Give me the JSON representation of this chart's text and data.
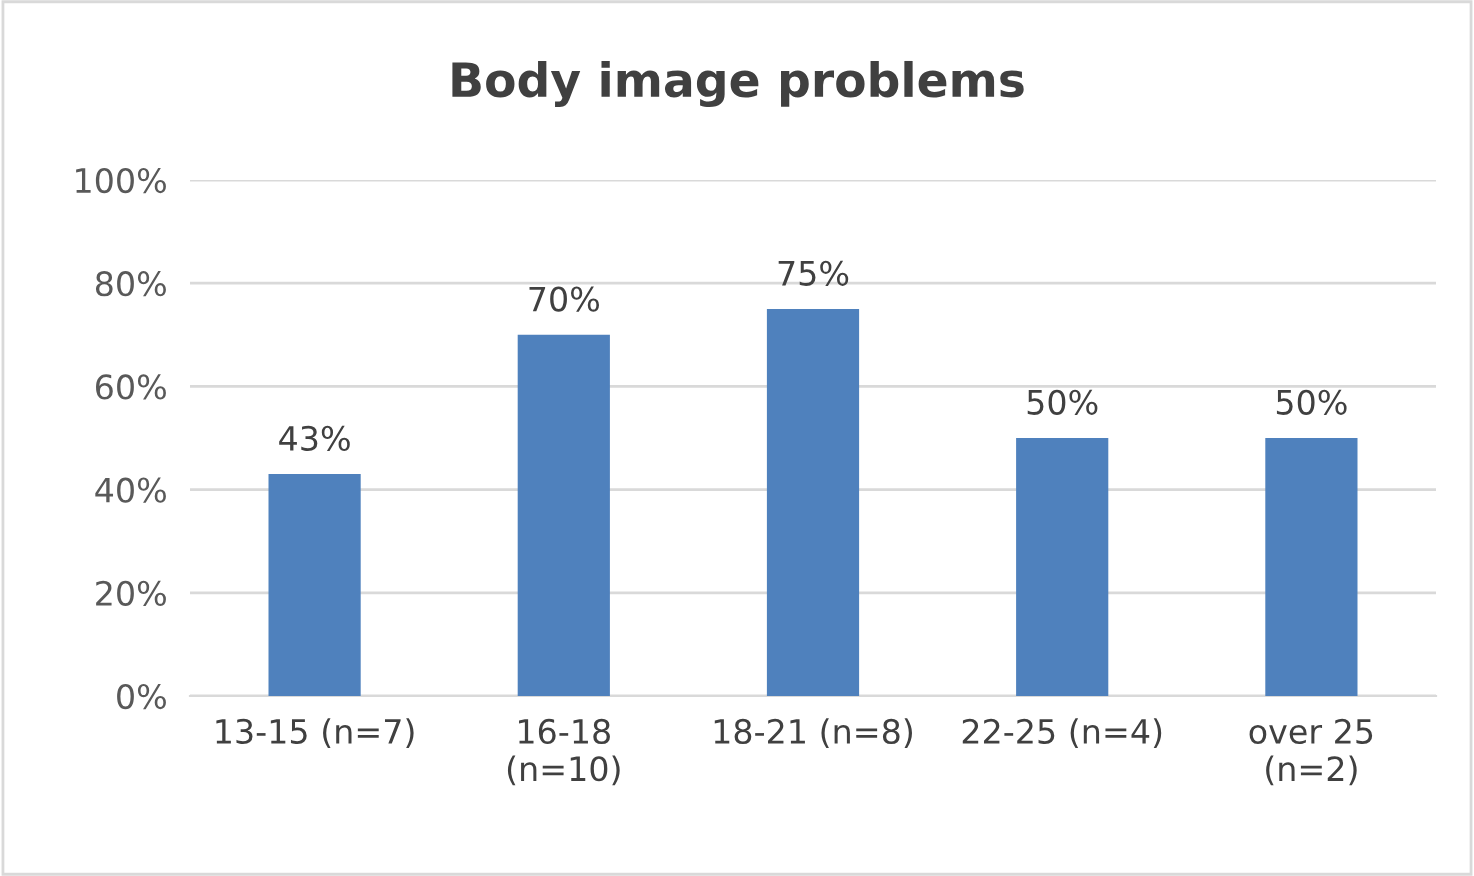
{
  "chart_data": {
    "type": "bar",
    "title": "Body image problems",
    "categories": [
      "13-15 (n=7)",
      "16-18 (n=10)",
      "18-21 (n=8)",
      "22-25 (n=4)",
      "over 25 (n=2)"
    ],
    "values": [
      43,
      70,
      75,
      50,
      50
    ],
    "value_labels": [
      "43%",
      "70%",
      "75%",
      "50%",
      "50%"
    ],
    "color": "#4f81bd",
    "ylim": [
      0,
      100
    ],
    "yticks": [
      {
        "value": 0,
        "label": "0%"
      },
      {
        "value": 20,
        "label": "20%"
      },
      {
        "value": 40,
        "label": "40%"
      },
      {
        "value": 60,
        "label": "60%"
      },
      {
        "value": 80,
        "label": "80%"
      },
      {
        "value": 100,
        "label": "100%"
      }
    ],
    "grid": "y",
    "legend": false
  }
}
